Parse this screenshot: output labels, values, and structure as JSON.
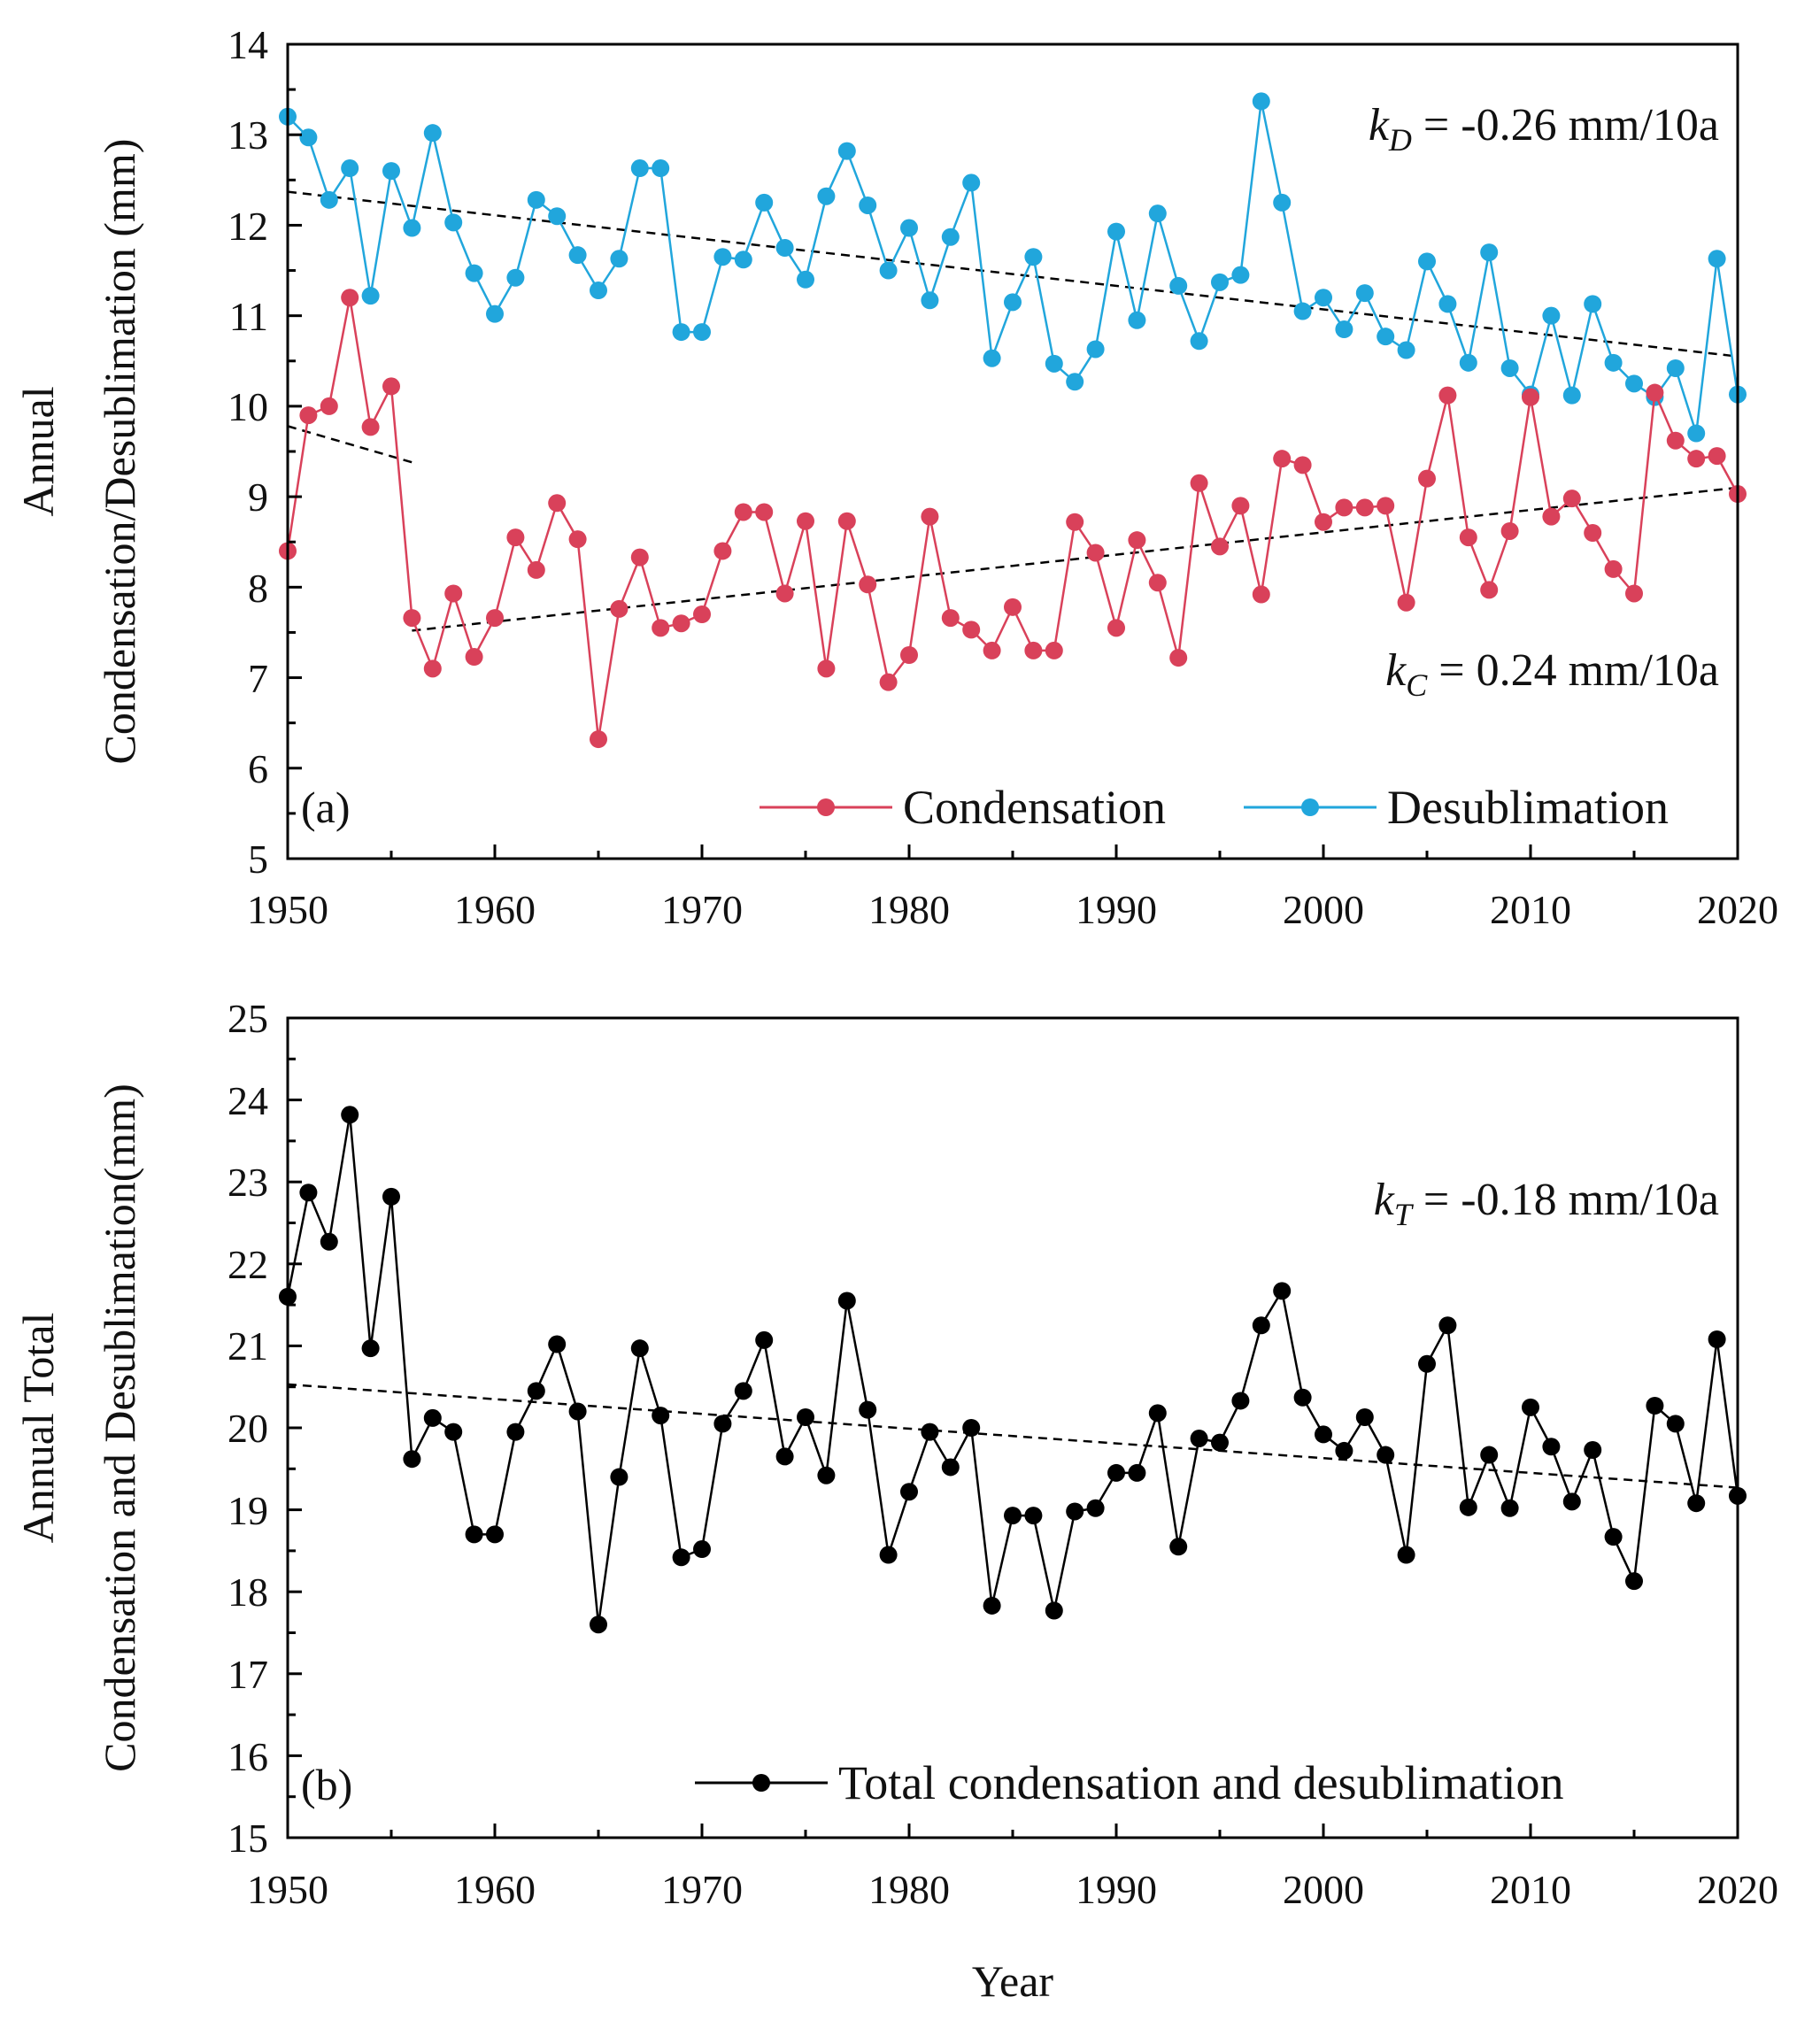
{
  "figure": {
    "x_axis_label": "Year",
    "x_ticks": [
      "1950",
      "1960",
      "1970",
      "1980",
      "1990",
      "2000",
      "2010",
      "2020"
    ],
    "colors": {
      "condensation": "#d9415a",
      "desublimation": "#21a6dc",
      "total": "#000000",
      "trend": "#000000",
      "axis": "#000000"
    }
  },
  "panel_a": {
    "label": "(a)",
    "y_axis_label_line1": "Annual",
    "y_axis_label_line2": "Condensation/Desublimation (mm)",
    "y_ticks": [
      "5",
      "6",
      "7",
      "8",
      "9",
      "10",
      "11",
      "12",
      "13",
      "14"
    ],
    "annotation_d": {
      "k": "k",
      "sub": "D",
      "text": " = -0.26 mm/10a"
    },
    "annotation_c": {
      "k": "k",
      "sub": "C",
      "text": " = 0.24 mm/10a"
    },
    "legend": {
      "condensation": "Condensation",
      "desublimation": "Desublimation"
    }
  },
  "panel_b": {
    "label": "(b)",
    "y_axis_label_line1": "Annual Total",
    "y_axis_label_line2": "Condensation and Desublimation(mm)",
    "y_ticks": [
      "15",
      "16",
      "17",
      "18",
      "19",
      "20",
      "21",
      "22",
      "23",
      "24",
      "25"
    ],
    "annotation_t": {
      "k": "k",
      "sub": "T",
      "text": " = -0.18 mm/10a"
    },
    "legend": {
      "total": "Total condensation and desublimation"
    }
  },
  "chart_data": [
    {
      "type": "line",
      "title": "(a)",
      "xlabel": "",
      "ylabel": "Annual Condensation/Desublimation (mm)",
      "xlim": [
        1950,
        2020
      ],
      "ylim": [
        5,
        14
      ],
      "x": [
        1950,
        1951,
        1952,
        1953,
        1954,
        1955,
        1956,
        1957,
        1958,
        1959,
        1960,
        1961,
        1962,
        1963,
        1964,
        1965,
        1966,
        1967,
        1968,
        1969,
        1970,
        1971,
        1972,
        1973,
        1974,
        1975,
        1976,
        1977,
        1978,
        1979,
        1980,
        1981,
        1982,
        1983,
        1984,
        1985,
        1986,
        1987,
        1988,
        1989,
        1990,
        1991,
        1992,
        1993,
        1994,
        1995,
        1996,
        1997,
        1998,
        1999,
        2000,
        2001,
        2002,
        2003,
        2004,
        2005,
        2006,
        2007,
        2008,
        2009,
        2010,
        2011,
        2012,
        2013,
        2014,
        2015,
        2016,
        2017,
        2018,
        2019,
        2020
      ],
      "series": [
        {
          "name": "Condensation",
          "values": [
            8.4,
            9.9,
            10.0,
            11.2,
            9.77,
            10.22,
            7.66,
            7.1,
            7.93,
            7.23,
            7.66,
            8.55,
            8.19,
            8.93,
            8.53,
            6.32,
            7.76,
            8.33,
            7.55,
            7.6,
            7.7,
            8.4,
            8.83,
            8.83,
            7.93,
            8.73,
            7.1,
            8.73,
            8.03,
            6.95,
            7.25,
            8.78,
            7.66,
            7.53,
            7.3,
            7.78,
            7.3,
            7.3,
            8.72,
            8.38,
            7.55,
            8.52,
            8.05,
            7.22,
            9.15,
            8.45,
            8.9,
            7.92,
            9.42,
            9.35,
            8.72,
            8.88,
            8.88,
            8.9,
            7.83,
            9.2,
            10.12,
            8.55,
            7.97,
            8.62,
            10.1,
            8.78,
            8.98,
            8.6,
            8.2,
            7.93,
            10.15,
            9.62,
            9.42,
            9.45,
            9.03
          ]
        },
        {
          "name": "Desublimation",
          "values": [
            13.2,
            12.97,
            12.28,
            12.63,
            11.22,
            12.6,
            11.97,
            13.02,
            12.03,
            11.47,
            11.02,
            11.42,
            12.28,
            12.1,
            11.67,
            11.28,
            11.63,
            12.63,
            12.63,
            10.82,
            10.82,
            11.65,
            11.62,
            12.25,
            11.75,
            11.4,
            12.32,
            12.82,
            12.22,
            11.5,
            11.97,
            11.17,
            11.87,
            12.47,
            10.53,
            11.15,
            11.65,
            10.47,
            10.27,
            10.63,
            11.93,
            10.95,
            12.13,
            11.33,
            10.72,
            11.37,
            11.45,
            13.37,
            12.25,
            11.05,
            11.2,
            10.85,
            11.25,
            10.77,
            10.62,
            11.6,
            11.13,
            10.48,
            11.7,
            10.42,
            10.13,
            11.0,
            10.12,
            11.13,
            10.48,
            10.25,
            10.1,
            10.42,
            9.7,
            11.63,
            10.13
          ]
        }
      ],
      "trend_lines": [
        {
          "name": "Desublimation trend",
          "from": [
            1950,
            12.37
          ],
          "to": [
            2020,
            10.55
          ]
        },
        {
          "name": "Condensation early segment",
          "from": [
            1950,
            9.78
          ],
          "to": [
            1956,
            9.38
          ]
        },
        {
          "name": "Condensation trend",
          "from": [
            1956,
            7.52
          ],
          "to": [
            2020,
            9.1
          ]
        }
      ],
      "annotations": [
        "kD = -0.26 mm/10a",
        "kC = 0.24 mm/10a"
      ],
      "legend_position": "bottom-right"
    },
    {
      "type": "line",
      "title": "(b)",
      "xlabel": "Year",
      "ylabel": "Annual Total Condensation and Desublimation(mm)",
      "xlim": [
        1950,
        2020
      ],
      "ylim": [
        15,
        25
      ],
      "x": [
        1950,
        1951,
        1952,
        1953,
        1954,
        1955,
        1956,
        1957,
        1958,
        1959,
        1960,
        1961,
        1962,
        1963,
        1964,
        1965,
        1966,
        1967,
        1968,
        1969,
        1970,
        1971,
        1972,
        1973,
        1974,
        1975,
        1976,
        1977,
        1978,
        1979,
        1980,
        1981,
        1982,
        1983,
        1984,
        1985,
        1986,
        1987,
        1988,
        1989,
        1990,
        1991,
        1992,
        1993,
        1994,
        1995,
        1996,
        1997,
        1998,
        1999,
        2000,
        2001,
        2002,
        2003,
        2004,
        2005,
        2006,
        2007,
        2008,
        2009,
        2010,
        2011,
        2012,
        2013,
        2014,
        2015,
        2016,
        2017,
        2018,
        2019,
        2020
      ],
      "series": [
        {
          "name": "Total condensation and desublimation",
          "values": [
            21.6,
            22.87,
            22.27,
            23.82,
            20.97,
            22.82,
            19.62,
            20.12,
            19.95,
            18.7,
            18.7,
            19.95,
            20.45,
            21.02,
            20.2,
            17.6,
            19.4,
            20.97,
            20.15,
            18.42,
            18.52,
            20.05,
            20.45,
            21.07,
            19.65,
            20.13,
            19.42,
            21.55,
            20.22,
            18.45,
            19.22,
            19.95,
            19.52,
            20.0,
            17.83,
            18.93,
            18.93,
            17.77,
            18.98,
            19.02,
            19.45,
            19.45,
            20.18,
            18.55,
            19.87,
            19.82,
            20.33,
            21.25,
            21.67,
            20.37,
            19.92,
            19.72,
            20.13,
            19.67,
            18.45,
            20.78,
            21.25,
            19.03,
            19.67,
            19.02,
            20.25,
            19.77,
            19.1,
            19.73,
            18.67,
            18.13,
            20.27,
            20.05,
            19.08,
            21.08,
            19.17
          ]
        }
      ],
      "trend_lines": [
        {
          "name": "Total trend",
          "from": [
            1950,
            20.53
          ],
          "to": [
            2020,
            19.27
          ]
        }
      ],
      "annotations": [
        "kT = -0.18 mm/10a"
      ],
      "legend_position": "bottom-right"
    }
  ]
}
